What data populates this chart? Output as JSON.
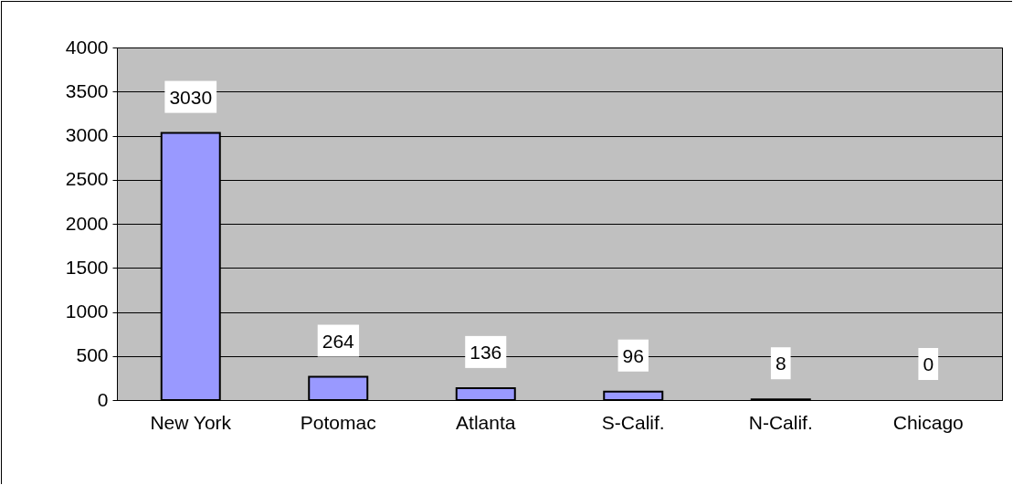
{
  "chart_data": {
    "type": "bar",
    "categories": [
      "New York",
      "Potomac",
      "Atlanta",
      "S-Calif.",
      "N-Calif.",
      "Chicago"
    ],
    "values": [
      3030,
      264,
      136,
      96,
      8,
      0
    ],
    "color": "#9999ff",
    "ylim": [
      0,
      4000
    ],
    "yticks": [
      0,
      500,
      1000,
      1500,
      2000,
      2500,
      3000,
      3500,
      4000
    ],
    "grid": "y",
    "data_labels": true
  }
}
